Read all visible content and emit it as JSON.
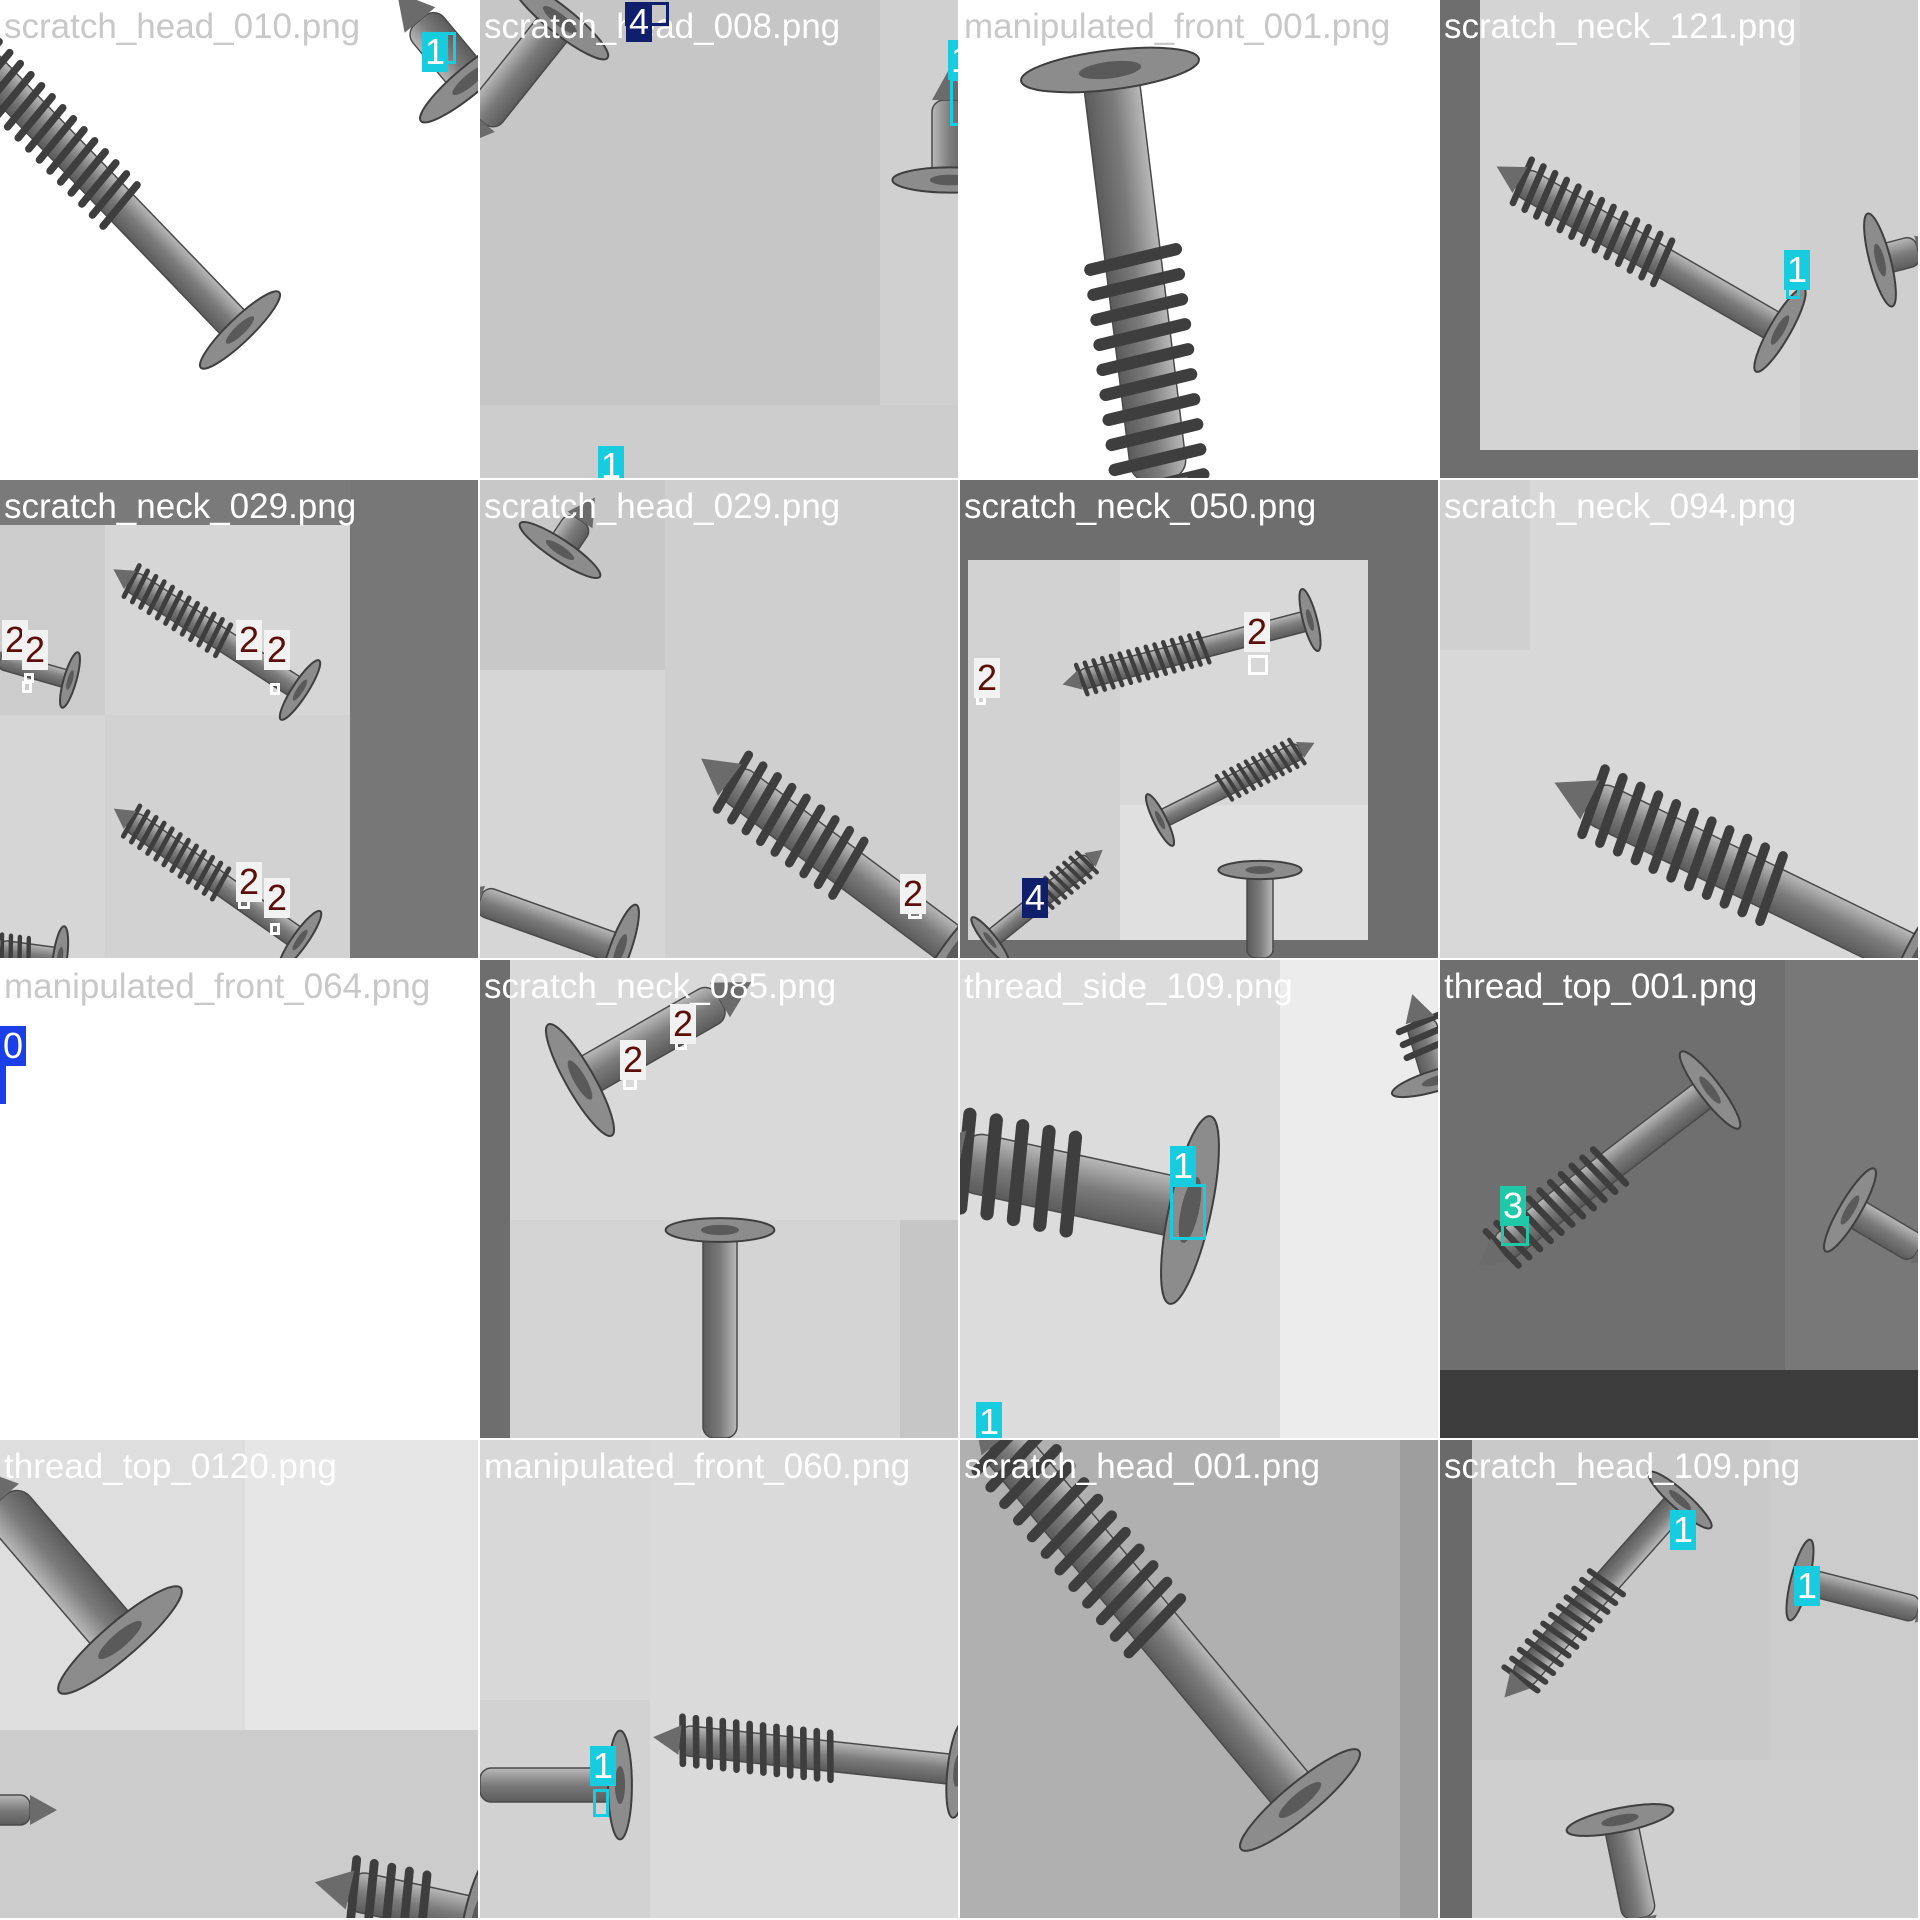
{
  "class_colors": {
    "0": "#1a3ee8",
    "1": "#17ccdf",
    "2": "#5b0f0a",
    "3": "#1fc9a8",
    "4": "#0f1f6c"
  },
  "label_text_colors": {
    "0": "#ffffff",
    "1": "#ffffff",
    "2": "#5b0f0a",
    "3": "#ffffff",
    "4": "#ffffff"
  },
  "tiles": [
    {
      "filename": "scratch_head_010.png",
      "bg": "#ffffff",
      "name_color": "#c8c8c8",
      "detections": [
        {
          "cls": "1",
          "label": "1"
        }
      ]
    },
    {
      "filename": "scratch_head_008.png",
      "bg": "#c6c6c6",
      "name_color": "#ffffff",
      "detections": [
        {
          "cls": "4",
          "label": "4"
        },
        {
          "cls": "1",
          "label": "1"
        },
        {
          "cls": "1",
          "label": "1"
        }
      ]
    },
    {
      "filename": "manipulated_front_001.png",
      "bg": "#ffffff",
      "name_color": "#c8c8c8",
      "detections": []
    },
    {
      "filename": "scratch_neck_121.png",
      "bg": "#d4d4d4",
      "name_color": "#ffffff",
      "detections": [
        {
          "cls": "1",
          "label": "1"
        }
      ]
    },
    {
      "filename": "scratch_neck_029.png",
      "bg": "#d6d6d6",
      "name_color": "#ffffff",
      "detections": [
        {
          "cls": "2",
          "label": "2"
        },
        {
          "cls": "2",
          "label": "2"
        },
        {
          "cls": "2",
          "label": "2"
        },
        {
          "cls": "2",
          "label": "2"
        },
        {
          "cls": "2",
          "label": "2"
        },
        {
          "cls": "2",
          "label": "2"
        }
      ]
    },
    {
      "filename": "scratch_head_029.png",
      "bg": "#cfcfcf",
      "name_color": "#ffffff",
      "detections": [
        {
          "cls": "2",
          "label": "2"
        }
      ]
    },
    {
      "filename": "scratch_neck_050.png",
      "bg": "#6e6e6e",
      "name_color": "#ffffff",
      "detections": [
        {
          "cls": "2",
          "label": "2"
        },
        {
          "cls": "2",
          "label": "2"
        },
        {
          "cls": "4",
          "label": "4"
        }
      ]
    },
    {
      "filename": "scratch_neck_094.png",
      "bg": "#d8d8d8",
      "name_color": "#ffffff",
      "detections": []
    },
    {
      "filename": "manipulated_front_064.png",
      "bg": "#ffffff",
      "name_color": "#c8c8c8",
      "detections": [
        {
          "cls": "0",
          "label": "0"
        }
      ]
    },
    {
      "filename": "scratch_neck_085.png",
      "bg": "#d4d4d4",
      "name_color": "#ffffff",
      "detections": [
        {
          "cls": "2",
          "label": "2"
        },
        {
          "cls": "2",
          "label": "2"
        }
      ]
    },
    {
      "filename": "thread_side_109.png",
      "bg": "#dcdcdc",
      "name_color": "#ffffff",
      "detections": [
        {
          "cls": "1",
          "label": "1"
        },
        {
          "cls": "1",
          "label": "1"
        }
      ]
    },
    {
      "filename": "thread_top_001.png",
      "bg": "#6f6f6f",
      "name_color": "#ffffff",
      "detections": [
        {
          "cls": "3",
          "label": "3"
        }
      ]
    },
    {
      "filename": "thread_top_0120.png",
      "bg": "#dedede",
      "name_color": "#ffffff",
      "detections": []
    },
    {
      "filename": "manipulated_front_060.png",
      "bg": "#d2d2d2",
      "name_color": "#ffffff",
      "detections": [
        {
          "cls": "1",
          "label": "1"
        }
      ]
    },
    {
      "filename": "scratch_head_001.png",
      "bg": "#b0b0b0",
      "name_color": "#ffffff",
      "detections": []
    },
    {
      "filename": "scratch_head_109.png",
      "bg": "#c9c9c9",
      "name_color": "#ffffff",
      "detections": [
        {
          "cls": "1",
          "label": "1"
        },
        {
          "cls": "1",
          "label": "1"
        }
      ]
    }
  ]
}
